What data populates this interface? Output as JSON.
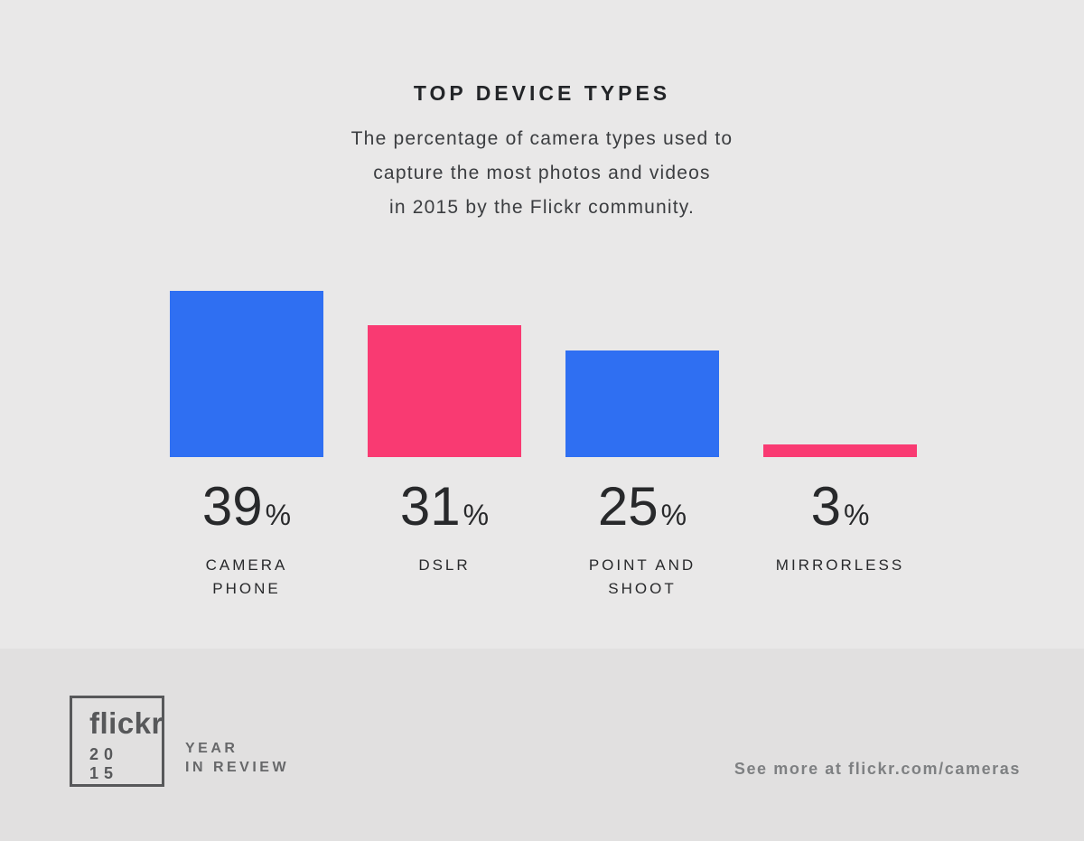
{
  "header": {
    "title": "TOP DEVICE TYPES",
    "subtitle_lines": [
      "The percentage of camera types used to",
      "capture the most photos and videos",
      "in 2015 by the Flickr community."
    ]
  },
  "chart_data": {
    "type": "bar",
    "title": "TOP DEVICE TYPES",
    "subtitle": "The percentage of camera types used to capture the most photos and videos in 2015 by the Flickr community.",
    "categories": [
      "CAMERA PHONE",
      "DSLR",
      "POINT AND SHOOT",
      "MIRRORLESS"
    ],
    "values": [
      39,
      31,
      25,
      3
    ],
    "unit": "%",
    "colors": [
      "#2F6FF2",
      "#F93A72",
      "#2F6FF2",
      "#F93A72"
    ],
    "ylim": [
      0,
      39
    ],
    "grid": false,
    "legend": "none",
    "value_labels_shown": true,
    "accent_blue": "#2F6FF2",
    "accent_pink": "#F93A72"
  },
  "bars": [
    {
      "value": "39",
      "unit": "%",
      "label_lines": [
        "CAMERA",
        "PHONE"
      ]
    },
    {
      "value": "31",
      "unit": "%",
      "label_lines": [
        "DSLR"
      ]
    },
    {
      "value": "25",
      "unit": "%",
      "label_lines": [
        "POINT AND",
        "SHOOT"
      ]
    },
    {
      "value": "3",
      "unit": "%",
      "label_lines": [
        "MIRRORLESS"
      ]
    }
  ],
  "footer": {
    "logo": {
      "brand": "flickr",
      "year_line1": "20",
      "year_line2": "15"
    },
    "tagline_line1": "YEAR",
    "tagline_line2": "IN REVIEW",
    "link_text": "See more at flickr.com/cameras"
  }
}
